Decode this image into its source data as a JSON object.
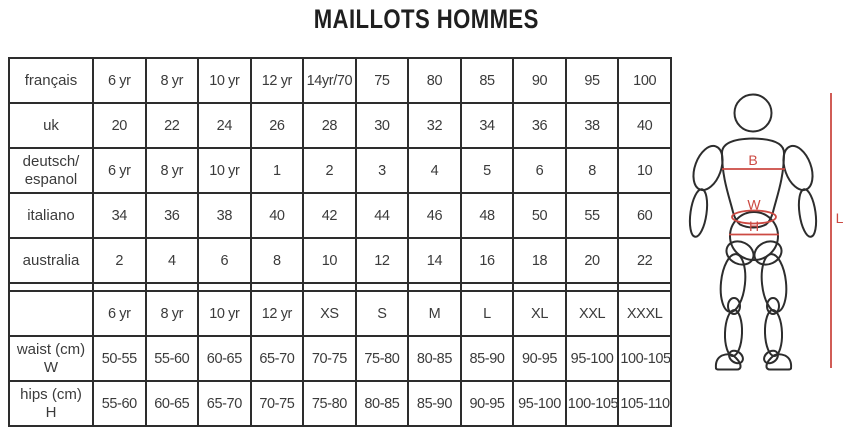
{
  "page_title": "MAILLOTS HOMMES",
  "colors": {
    "measure_red": "#cc4a43",
    "table_border": "#2d2d2d",
    "table_text": "#3b3b3b",
    "title_text": "#1f1f1f"
  },
  "chart_data": {
    "type": "table",
    "title": "MAILLOTS HOMMES",
    "layout": {
      "label_column": "region / measurement",
      "data_columns": 11,
      "separator": "double rule between conversion section and measurement section"
    },
    "sections": [
      {
        "name": "size-conversions",
        "rows": [
          {
            "label": "français",
            "cells": [
              "6 yr",
              "8 yr",
              "10 yr",
              "12 yr",
              "14yr/70",
              "75",
              "80",
              "85",
              "90",
              "95",
              "100"
            ]
          },
          {
            "label": "uk",
            "cells": [
              "20",
              "22",
              "24",
              "26",
              "28",
              "30",
              "32",
              "34",
              "36",
              "38",
              "40"
            ]
          },
          {
            "label": "deutsch/\nespanol",
            "cells": [
              "6 yr",
              "8 yr",
              "10 yr",
              "1",
              "2",
              "3",
              "4",
              "5",
              "6",
              "8",
              "10"
            ]
          },
          {
            "label": "italiano",
            "cells": [
              "34",
              "36",
              "38",
              "40",
              "42",
              "44",
              "46",
              "48",
              "50",
              "55",
              "60"
            ]
          },
          {
            "label": "australia",
            "cells": [
              "2",
              "4",
              "6",
              "8",
              "10",
              "12",
              "14",
              "16",
              "18",
              "20",
              "22"
            ]
          }
        ]
      },
      {
        "name": "body-measurements",
        "rows": [
          {
            "label": "",
            "cells": [
              "6 yr",
              "8 yr",
              "10 yr",
              "12 yr",
              "XS",
              "S",
              "M",
              "L",
              "XL",
              "XXL",
              "XXXL"
            ]
          },
          {
            "label": "waist (cm)\nW",
            "cells": [
              "50-55",
              "55-60",
              "60-65",
              "65-70",
              "70-75",
              "75-80",
              "80-85",
              "85-90",
              "90-95",
              "95-100",
              "100-105"
            ]
          },
          {
            "label": "hips (cm)\nH",
            "cells": [
              "55-60",
              "60-65",
              "65-70",
              "70-75",
              "75-80",
              "80-85",
              "85-90",
              "90-95",
              "95-100",
              "100-105",
              "105-110"
            ]
          }
        ]
      }
    ]
  },
  "mannequin": {
    "bust_label": "B",
    "waist_label": "W",
    "hips_label": "H",
    "length_label": "L"
  }
}
